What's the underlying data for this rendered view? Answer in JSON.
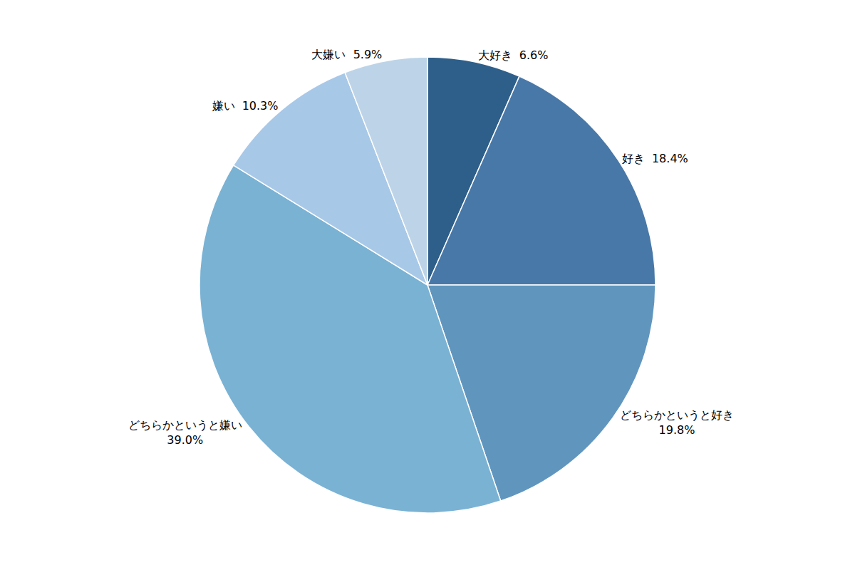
{
  "chart_data": {
    "type": "pie",
    "categories": [
      "大好き",
      "好き",
      "どちらかというと好き",
      "どちらかというと嫌い",
      "嫌い",
      "大嫌い"
    ],
    "values": [
      6.6,
      18.4,
      19.8,
      39.0,
      10.3,
      5.9
    ],
    "value_labels": [
      "6.6%",
      "18.4%",
      "19.8%",
      "39.0%",
      "10.3%",
      "5.9%"
    ],
    "data_labels": true,
    "colors": [
      "#2e5f8a",
      "#4878a8",
      "#6096be",
      "#7ab2d4",
      "#a8c8e8",
      "#bdd4e8"
    ]
  }
}
